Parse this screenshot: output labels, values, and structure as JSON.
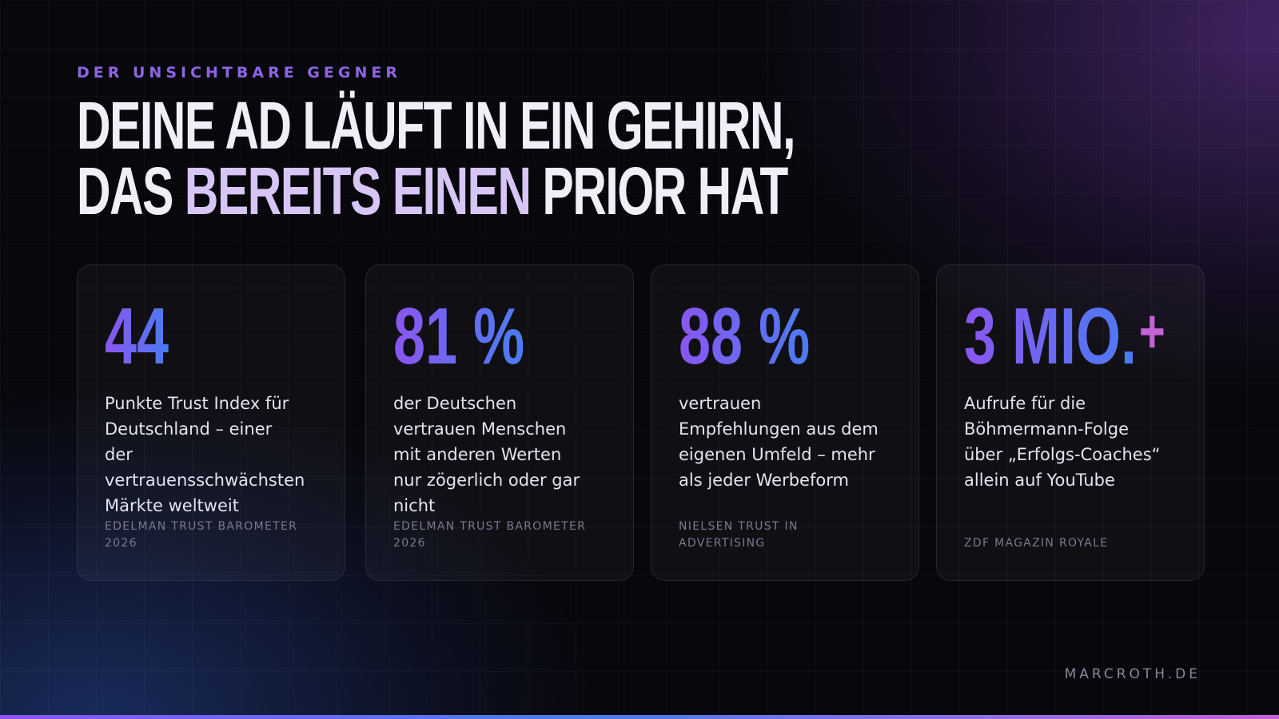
{
  "slide": {
    "eyebrow": "DER UNSICHTBARE GEGNER",
    "headline": {
      "main": "DEINE AD LÄUFT IN EIN GEHIRN, DAS ",
      "accent": "BEREITS EINEN",
      "end": " PRIOR HAT"
    },
    "cards": [
      {
        "number": "44",
        "suffix": "",
        "description": "Punkte Trust Index für\nDeutschland – einer\nder\nvertrauensschwächsten\nMärkte weltweit",
        "source": "EDELMAN TRUST BAROMETER\n2026"
      },
      {
        "number": "81 %",
        "suffix": "",
        "description": "der Deutschen\nvertrauen Menschen\nmit anderen Werten\nnur zögerlich oder gar\nnicht",
        "source": "EDELMAN TRUST BAROMETER\n2026"
      },
      {
        "number": "88 %",
        "suffix": "",
        "description": "vertrauen\nEmpfehlungen aus dem\neigenen Umfeld – mehr\nals jeder Werbeform",
        "source": "NIELSEN TRUST IN\nADVERTISING"
      },
      {
        "number": "3 MIO.",
        "suffix": "+",
        "description": "Aufrufe für die\nBöhmermann-Folge\nüber „Erfolgs-Coaches“\nallein auf YouTube",
        "source": "ZDF MAGAZIN ROYALE"
      }
    ],
    "footer": "MARCROTH.DE",
    "colors": {
      "accent_purple": "#8a56f0",
      "accent_blue": "#4a7cf2",
      "accent_pink": "#c562d8",
      "background": "#08080c"
    }
  }
}
